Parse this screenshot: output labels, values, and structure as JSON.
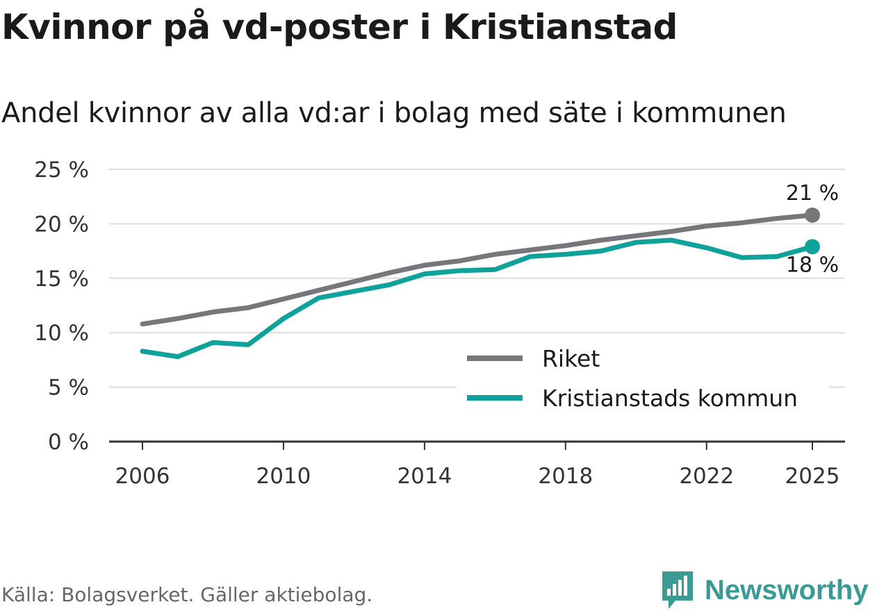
{
  "title": "Kvinnor på vd-poster i Kristianstad",
  "subtitle": "Andel kvinnor av alla vd:ar i bolag med säte i kommunen",
  "source": "Källa: Bolagsverket. Gäller aktiebolag.",
  "brand": "Newsworthy",
  "colors": {
    "riket": "#76767b",
    "kommun": "#0fa29a",
    "grid": "#dddddd",
    "axis": "#333333",
    "brand": "#3a9a94"
  },
  "chart_data": {
    "type": "line",
    "x": [
      2006,
      2007,
      2008,
      2009,
      2010,
      2011,
      2012,
      2013,
      2014,
      2015,
      2016,
      2017,
      2018,
      2019,
      2020,
      2021,
      2022,
      2023,
      2024,
      2025
    ],
    "series": [
      {
        "name": "Riket",
        "values": [
          10.8,
          11.3,
          11.9,
          12.3,
          13.1,
          13.9,
          14.7,
          15.5,
          16.2,
          16.6,
          17.2,
          17.6,
          18.0,
          18.5,
          18.9,
          19.3,
          19.8,
          20.1,
          20.5,
          20.8
        ],
        "end_label": "21 %"
      },
      {
        "name": "Kristianstads kommun",
        "values": [
          8.3,
          7.8,
          9.1,
          8.9,
          11.3,
          13.2,
          13.8,
          14.4,
          15.4,
          15.7,
          15.8,
          17.0,
          17.2,
          17.5,
          18.3,
          18.5,
          17.8,
          16.9,
          17.0,
          17.9
        ],
        "end_label": "18 %"
      }
    ],
    "xticks": [
      2006,
      2010,
      2014,
      2018,
      2022,
      2025
    ],
    "yticks": [
      0,
      5,
      10,
      15,
      20,
      25
    ],
    "ytick_labels": [
      "0 %",
      "5 %",
      "10 %",
      "15 %",
      "20 %",
      "25 %"
    ],
    "ylim": [
      0,
      25
    ],
    "xlim": [
      2006,
      2025
    ],
    "grid": true,
    "legend": "lower-right"
  }
}
